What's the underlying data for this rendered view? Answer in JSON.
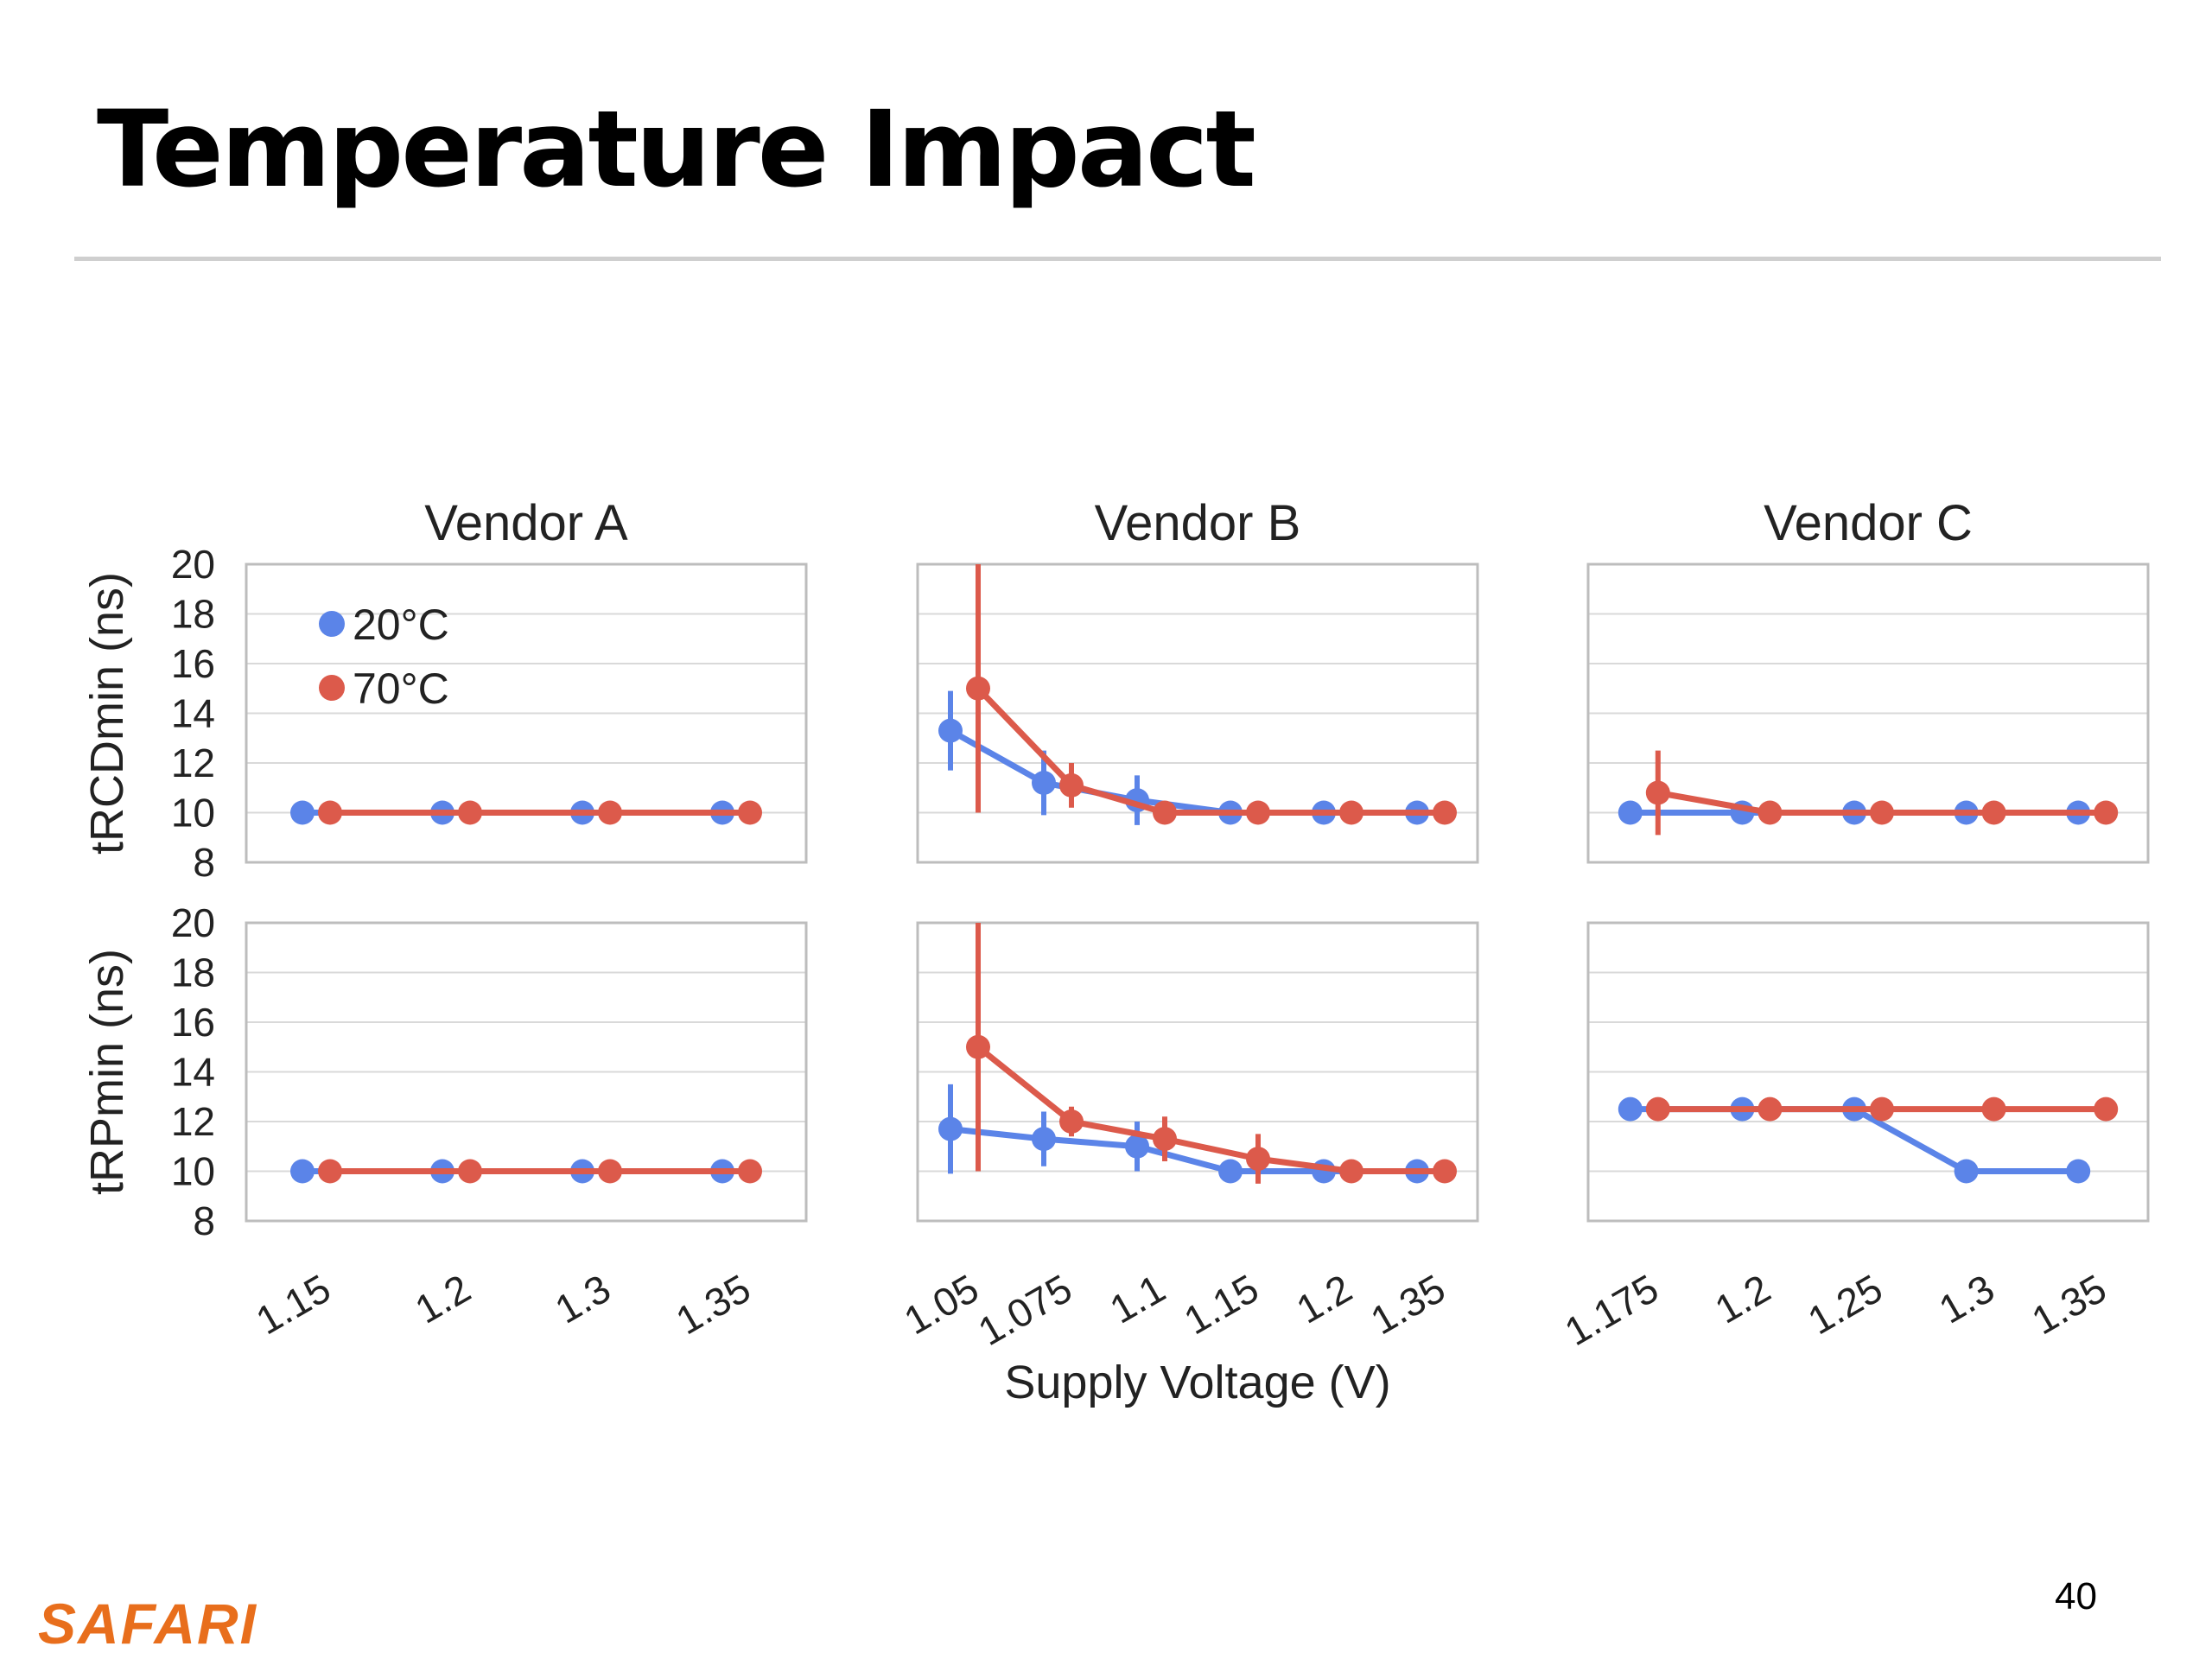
{
  "slide": {
    "title": "Temperature Impact",
    "logo": "SAFARI",
    "page_number": "40"
  },
  "colors": {
    "c20": "#5b84e8",
    "c70": "#dc5a4b",
    "grid": "#d9d9d9",
    "frame": "#bdbdbd"
  },
  "chart_data": {
    "type": "line",
    "xlabel": "Supply Voltage (V)",
    "ylabels": [
      "tRCDmin (ns)",
      "tRPmin (ns)"
    ],
    "ylim": [
      8,
      20
    ],
    "yticks": [
      8,
      10,
      12,
      14,
      16,
      18,
      20
    ],
    "grid": true,
    "legend": {
      "placement": "top-left",
      "entries": [
        "20°C",
        "70°C"
      ]
    },
    "panels": [
      {
        "vendor": "Vendor A",
        "metric": "tRCDmin (ns)",
        "categories": [
          "1.15",
          "1.2",
          "1.3",
          "1.35"
        ],
        "series": [
          {
            "name": "20°C",
            "values": [
              10,
              10,
              10,
              10
            ],
            "err": [
              0,
              0,
              0,
              0
            ]
          },
          {
            "name": "70°C",
            "values": [
              10,
              10,
              10,
              10
            ],
            "err": [
              0,
              0,
              0,
              0
            ]
          }
        ]
      },
      {
        "vendor": "Vendor B",
        "metric": "tRCDmin (ns)",
        "categories": [
          "1.05",
          "1.075",
          "1.1",
          "1.15",
          "1.2",
          "1.35"
        ],
        "series": [
          {
            "name": "20°C",
            "values": [
              13.3,
              11.2,
              10.5,
              10,
              10,
              10
            ],
            "err": [
              1.6,
              1.3,
              1.0,
              0,
              0,
              0
            ]
          },
          {
            "name": "70°C",
            "values": [
              15,
              11.1,
              10,
              10,
              10,
              10
            ],
            "err": [
              5,
              0.9,
              0,
              0,
              0,
              0
            ]
          }
        ]
      },
      {
        "vendor": "Vendor C",
        "metric": "tRCDmin (ns)",
        "categories": [
          "1.175",
          "1.2",
          "1.25",
          "1.3",
          "1.35"
        ],
        "series": [
          {
            "name": "20°C",
            "values": [
              10,
              10,
              10,
              10,
              10
            ],
            "err": [
              0,
              0,
              0,
              0,
              0
            ]
          },
          {
            "name": "70°C",
            "values": [
              10.8,
              10,
              10,
              10,
              10
            ],
            "err": [
              1.7,
              0,
              0,
              0,
              0
            ]
          }
        ]
      },
      {
        "vendor": "Vendor A",
        "metric": "tRPmin (ns)",
        "categories": [
          "1.15",
          "1.2",
          "1.3",
          "1.35"
        ],
        "series": [
          {
            "name": "20°C",
            "values": [
              10,
              10,
              10,
              10
            ],
            "err": [
              0,
              0,
              0,
              0
            ]
          },
          {
            "name": "70°C",
            "values": [
              10,
              10,
              10,
              10
            ],
            "err": [
              0,
              0,
              0,
              0
            ]
          }
        ]
      },
      {
        "vendor": "Vendor B",
        "metric": "tRPmin (ns)",
        "categories": [
          "1.05",
          "1.075",
          "1.1",
          "1.15",
          "1.2",
          "1.35"
        ],
        "series": [
          {
            "name": "20°C",
            "values": [
              11.7,
              11.3,
              11.0,
              10,
              10,
              10
            ],
            "err": [
              1.8,
              1.1,
              1.0,
              0,
              0,
              0
            ]
          },
          {
            "name": "70°C",
            "values": [
              15,
              12,
              11.3,
              10.5,
              10,
              10
            ],
            "err": [
              5,
              0.6,
              0.9,
              1.0,
              0,
              0
            ]
          }
        ]
      },
      {
        "vendor": "Vendor C",
        "metric": "tRPmin (ns)",
        "categories": [
          "1.175",
          "1.2",
          "1.25",
          "1.3",
          "1.35"
        ],
        "series": [
          {
            "name": "20°C",
            "values": [
              12.5,
              12.5,
              12.5,
              10,
              10
            ],
            "err": [
              0,
              0,
              0,
              0,
              0
            ]
          },
          {
            "name": "70°C",
            "values": [
              12.5,
              12.5,
              12.5,
              12.5,
              12.5
            ],
            "err": [
              0,
              0,
              0,
              0,
              0
            ]
          }
        ]
      }
    ]
  }
}
